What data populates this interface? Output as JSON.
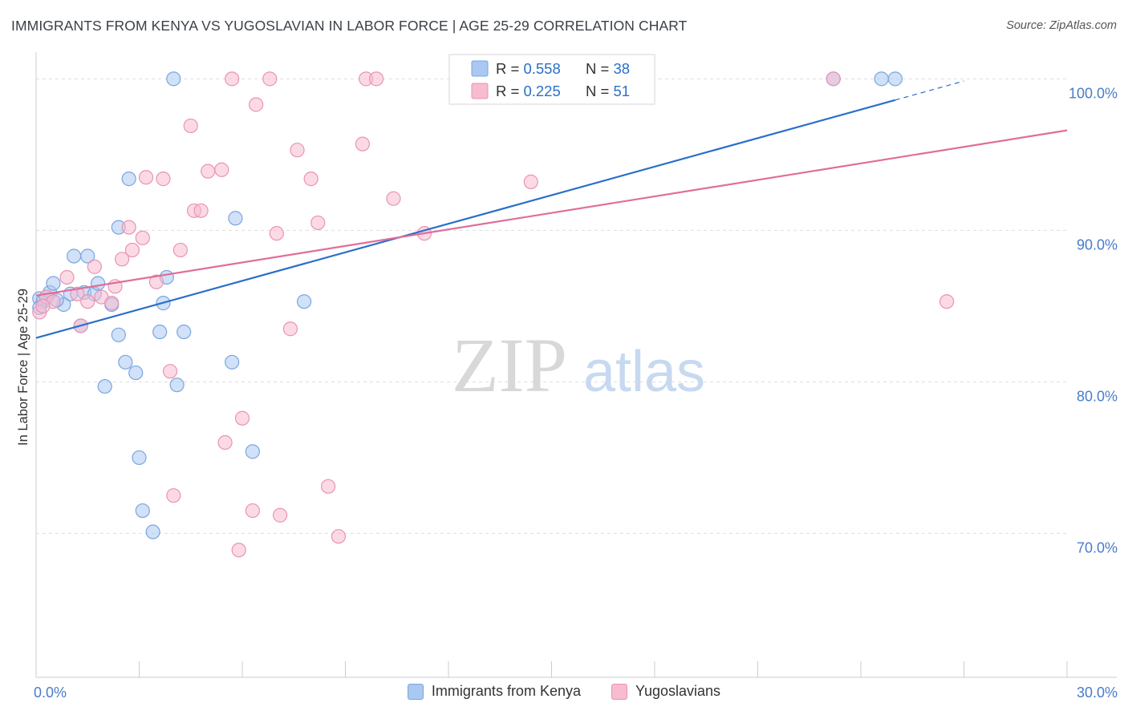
{
  "header": {
    "title": "IMMIGRANTS FROM KENYA VS YUGOSLAVIAN IN LABOR FORCE | AGE 25-29 CORRELATION CHART",
    "source": "Source: ZipAtlas.com"
  },
  "watermark": {
    "zip": "ZIP",
    "atlas": "atlas"
  },
  "colors": {
    "kenya_fill": "#a9c8f2",
    "kenya_stroke": "#7aa6df",
    "kenya_line": "#2b6fc9",
    "yugo_fill": "#f7bcd0",
    "yugo_stroke": "#ea93b2",
    "yugo_line": "#e06d9a",
    "tick_label": "#4a7cc9",
    "grid": "#dddddd",
    "r_value": "#2b6fc9"
  },
  "legend_top": [
    {
      "r_label": "R = ",
      "r_value": "0.558",
      "n_label": "N = ",
      "n_value": "38"
    },
    {
      "r_label": "R = ",
      "r_value": "0.225",
      "n_label": "N = ",
      "n_value": "51"
    }
  ],
  "chart_data": {
    "type": "scatter",
    "xlabel": "",
    "ylabel": "In Labor Force | Age 25-29",
    "xlim": [
      0,
      30
    ],
    "ylim": [
      60.5,
      101.5
    ],
    "x_tick_labels": [
      {
        "value": 0,
        "label": "0.0%"
      },
      {
        "value": 30,
        "label": "30.0%"
      }
    ],
    "y_tick_labels": [
      {
        "value": 100,
        "label": "100.0%"
      },
      {
        "value": 90,
        "label": "90.0%"
      },
      {
        "value": 80,
        "label": "80.0%"
      },
      {
        "value": 70,
        "label": "70.0%"
      }
    ],
    "x_minor_ticks": [
      0,
      3,
      6,
      9,
      12,
      15,
      18,
      21,
      24,
      27,
      30
    ],
    "grid_y": [
      100,
      90,
      80,
      70
    ],
    "legend_placement": "top-center",
    "series": [
      {
        "name": "Immigrants from Kenya",
        "trend": {
          "x0": 0,
          "y0": 82.9,
          "x1": 25.0,
          "y1": 98.6,
          "dash_to_x": 27.0
        },
        "points": [
          [
            0.1,
            85.5
          ],
          [
            0.2,
            85.3
          ],
          [
            0.4,
            85.9
          ],
          [
            0.5,
            86.5
          ],
          [
            0.8,
            85.1
          ],
          [
            1.0,
            85.8
          ],
          [
            1.1,
            88.3
          ],
          [
            1.4,
            85.9
          ],
          [
            1.5,
            88.3
          ],
          [
            1.7,
            85.8
          ],
          [
            1.8,
            86.5
          ],
          [
            2.2,
            85.1
          ],
          [
            2.4,
            83.1
          ],
          [
            2.4,
            90.2
          ],
          [
            2.6,
            81.3
          ],
          [
            2.7,
            93.4
          ],
          [
            2.9,
            80.6
          ],
          [
            3.0,
            75.0
          ],
          [
            3.1,
            71.5
          ],
          [
            3.4,
            70.1
          ],
          [
            3.6,
            83.3
          ],
          [
            3.7,
            85.2
          ],
          [
            3.8,
            86.9
          ],
          [
            4.0,
            100.0
          ],
          [
            4.1,
            79.8
          ],
          [
            4.3,
            83.3
          ],
          [
            5.7,
            81.3
          ],
          [
            5.8,
            90.8
          ],
          [
            6.3,
            75.4
          ],
          [
            7.8,
            85.3
          ],
          [
            23.2,
            100.0
          ],
          [
            24.6,
            100.0
          ],
          [
            25.0,
            100.0
          ],
          [
            0.1,
            84.9
          ],
          [
            0.3,
            85.6
          ],
          [
            0.6,
            85.4
          ],
          [
            1.3,
            83.7
          ],
          [
            2.0,
            79.7
          ]
        ]
      },
      {
        "name": "Yugoslavians",
        "trend": {
          "x0": 0,
          "y0": 85.7,
          "x1": 30.0,
          "y1": 96.6
        },
        "points": [
          [
            0.1,
            84.6
          ],
          [
            0.3,
            85.6
          ],
          [
            0.5,
            85.3
          ],
          [
            0.9,
            86.9
          ],
          [
            1.2,
            85.8
          ],
          [
            1.3,
            83.7
          ],
          [
            1.5,
            85.3
          ],
          [
            1.7,
            87.6
          ],
          [
            1.9,
            85.6
          ],
          [
            2.2,
            85.2
          ],
          [
            2.3,
            86.3
          ],
          [
            2.5,
            88.1
          ],
          [
            2.7,
            90.2
          ],
          [
            2.8,
            88.7
          ],
          [
            3.1,
            89.5
          ],
          [
            3.2,
            93.5
          ],
          [
            3.5,
            86.6
          ],
          [
            3.7,
            93.4
          ],
          [
            3.9,
            80.7
          ],
          [
            4.0,
            72.5
          ],
          [
            4.2,
            88.7
          ],
          [
            4.5,
            96.9
          ],
          [
            4.6,
            91.3
          ],
          [
            4.8,
            91.3
          ],
          [
            5.0,
            93.9
          ],
          [
            5.4,
            94.0
          ],
          [
            5.5,
            76.0
          ],
          [
            5.7,
            100.0
          ],
          [
            5.9,
            68.9
          ],
          [
            6.0,
            77.6
          ],
          [
            6.3,
            71.5
          ],
          [
            6.4,
            98.3
          ],
          [
            6.8,
            100.0
          ],
          [
            7.0,
            89.8
          ],
          [
            7.1,
            71.2
          ],
          [
            7.4,
            83.5
          ],
          [
            7.6,
            95.3
          ],
          [
            8.0,
            93.4
          ],
          [
            8.2,
            90.5
          ],
          [
            8.5,
            73.1
          ],
          [
            8.8,
            69.8
          ],
          [
            9.5,
            95.7
          ],
          [
            9.6,
            100.0
          ],
          [
            9.9,
            100.0
          ],
          [
            10.4,
            92.1
          ],
          [
            11.3,
            89.8
          ],
          [
            14.4,
            93.2
          ],
          [
            15.5,
            100.0
          ],
          [
            23.2,
            100.0
          ],
          [
            26.5,
            85.3
          ],
          [
            0.2,
            85.0
          ]
        ]
      }
    ]
  },
  "legend_bottom": [
    {
      "label": "Immigrants from Kenya"
    },
    {
      "label": "Yugoslavians"
    }
  ]
}
